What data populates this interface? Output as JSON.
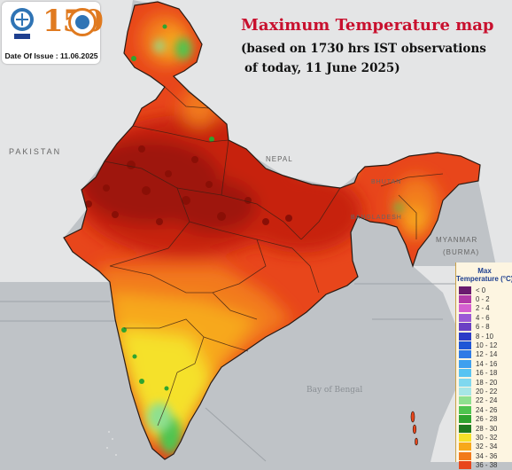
{
  "header": {
    "title": "Maximum Temperature map",
    "subtitle_line1": "(based on 1730 hrs IST observations",
    "subtitle_line2": "of today, 11 June 2025)"
  },
  "logo": {
    "badge_number": "150",
    "date_of_issue": "Date Of Issue : 11.06.2025"
  },
  "map_labels": {
    "pakistan": "PAKISTAN",
    "nepal": "NEPAL",
    "bhutan": "BHUTAN",
    "bangladesh": "BANGLADESH",
    "myanmar": "MYANMAR",
    "burma": "(BURMA)",
    "bay": "Bay of Bengal"
  },
  "legend": {
    "title_line1": "Max",
    "title_line2": "Temperature (°C)",
    "items": [
      {
        "label": "< 0",
        "color": "#6a1b6e"
      },
      {
        "label": "0 - 2",
        "color": "#b23aa8"
      },
      {
        "label": "2 - 4",
        "color": "#d45fd0"
      },
      {
        "label": "4 - 6",
        "color": "#9b59d6"
      },
      {
        "label": "6 - 8",
        "color": "#6a3fc4"
      },
      {
        "label": "8 - 10",
        "color": "#2b3bc7"
      },
      {
        "label": "10 - 12",
        "color": "#1f55d6"
      },
      {
        "label": "12 - 14",
        "color": "#2f7be6"
      },
      {
        "label": "14 - 16",
        "color": "#3ea0ef"
      },
      {
        "label": "16 - 18",
        "color": "#58c4f2"
      },
      {
        "label": "18 - 20",
        "color": "#7fd8ef"
      },
      {
        "label": "20 - 22",
        "color": "#a6e6e6"
      },
      {
        "label": "22 - 24",
        "color": "#8fe08f"
      },
      {
        "label": "24 - 26",
        "color": "#4fc44f"
      },
      {
        "label": "26 - 28",
        "color": "#2fa42f"
      },
      {
        "label": "28 - 30",
        "color": "#1f7a1f"
      },
      {
        "label": "30 - 32",
        "color": "#f5e12a"
      },
      {
        "label": "32 - 34",
        "color": "#f7a81a"
      },
      {
        "label": "34 - 36",
        "color": "#f27a1a"
      },
      {
        "label": "36 - 38",
        "color": "#e8461b"
      }
    ]
  },
  "colors": {
    "sea": "#bfc3c7",
    "land_outside": "#e4e5e6",
    "hot_core": "#9e1208",
    "very_hot": "#c7200f",
    "hot": "#e8461b",
    "warm": "#f27a1a",
    "mild": "#f7a81a",
    "cooler": "#f5e12a",
    "cool": "#8fe08f",
    "cold": "#2fa42f"
  }
}
